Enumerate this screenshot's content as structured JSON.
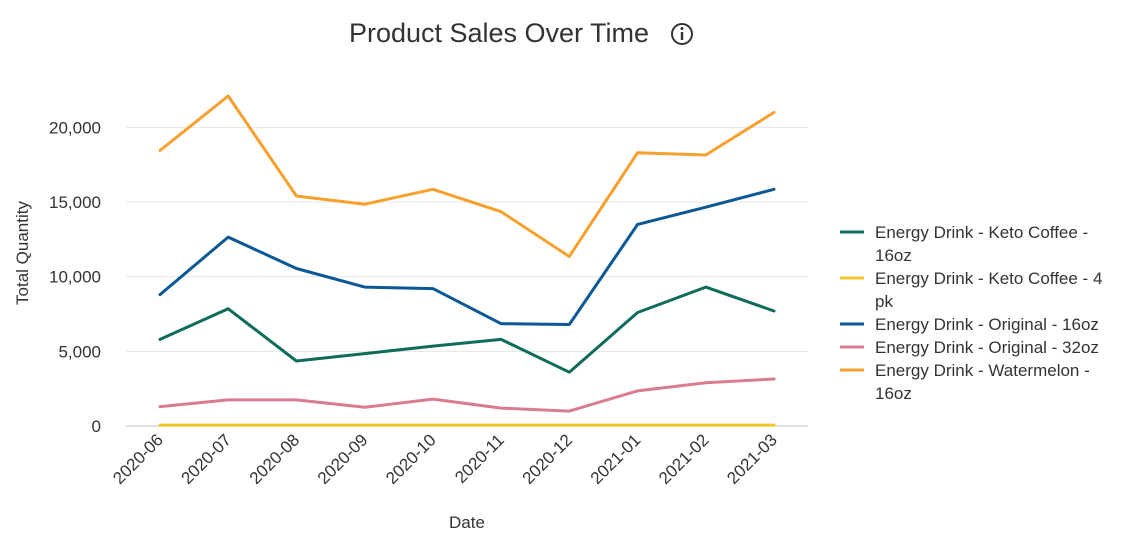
{
  "chart_data": {
    "type": "line",
    "title": "Product Sales Over Time",
    "xlabel": "Date",
    "ylabel": "Total Quantity",
    "categories": [
      "2020-06",
      "2020-07",
      "2020-08",
      "2020-09",
      "2020-10",
      "2020-11",
      "2020-12",
      "2021-01",
      "2021-02",
      "2021-03"
    ],
    "y_ticks": [
      0,
      5000,
      10000,
      15000,
      20000
    ],
    "y_tick_labels": [
      "0",
      "5,000",
      "10,000",
      "15,000",
      "20,000"
    ],
    "ylim": [
      0,
      22500
    ],
    "grid": true,
    "legend_position": "right",
    "series": [
      {
        "name": "Energy Drink - Keto Coffee - 16oz",
        "legend_lines": [
          "Energy Drink - Keto Coffee -",
          "16oz"
        ],
        "color": "#0f6b5c",
        "values": [
          5800,
          7850,
          4350,
          4850,
          5350,
          5800,
          3600,
          7600,
          9300,
          7700
        ]
      },
      {
        "name": "Energy Drink - Keto Coffee - 4 pk",
        "legend_lines": [
          "Energy Drink - Keto Coffee - 4",
          "pk"
        ],
        "color": "#f2c72e",
        "values": [
          60,
          60,
          60,
          60,
          60,
          60,
          60,
          60,
          60,
          60
        ]
      },
      {
        "name": "Energy Drink - Original - 16oz",
        "legend_lines": [
          "Energy Drink - Original - 16oz"
        ],
        "color": "#0a5896",
        "values": [
          8800,
          12650,
          10550,
          9300,
          9200,
          6850,
          6800,
          13500,
          14650,
          15850
        ]
      },
      {
        "name": "Energy Drink - Original - 32oz",
        "legend_lines": [
          "Energy Drink - Original - 32oz"
        ],
        "color": "#d97b91",
        "values": [
          1300,
          1750,
          1750,
          1250,
          1800,
          1200,
          1000,
          2350,
          2900,
          3150
        ]
      },
      {
        "name": "Energy Drink - Watermelon - 16oz",
        "legend_lines": [
          "Energy Drink - Watermelon -",
          "16oz"
        ],
        "color": "#f7a02d",
        "values": [
          18450,
          22100,
          15400,
          14850,
          15850,
          14350,
          11350,
          18300,
          18150,
          21000
        ]
      }
    ]
  }
}
